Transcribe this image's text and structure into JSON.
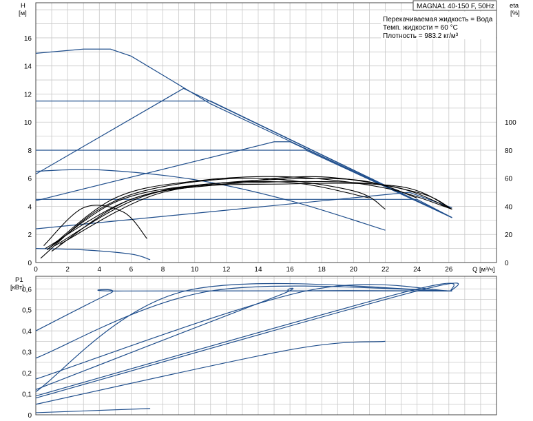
{
  "title_box": "MAGNA1 40-150 F, 50Hz",
  "info_lines": [
    "Перекачиваемая жидкость = Вода",
    "Темп. жидкости = 60 °C",
    "Плотность = 983.2 кг/м³"
  ],
  "colors": {
    "pump_curve": "#1f4e8c",
    "efficiency_curve": "#000000",
    "grid": "#c8c8c8"
  },
  "chart_data": [
    {
      "type": "line",
      "name": "head-chart",
      "ylabel_symbol": "H",
      "ylabel_unit": "[м]",
      "y2label_symbol": "eta",
      "y2label_unit": "[%]",
      "xlabel": "Q [м³/ч]",
      "xlim": [
        0,
        29
      ],
      "ylim": [
        0,
        18.5
      ],
      "y2lim": [
        0,
        185
      ],
      "x_ticks": [
        0,
        2,
        4,
        6,
        8,
        10,
        12,
        14,
        16,
        18,
        20,
        22,
        24,
        26
      ],
      "y_ticks": [
        0,
        2,
        4,
        6,
        8,
        10,
        12,
        14,
        16
      ],
      "y2_ticks": [
        0,
        20,
        40,
        60,
        80,
        100
      ],
      "grid": true,
      "pump_curves": [
        {
          "x": [
            0,
            3,
            4.7,
            6,
            11,
            26.2
          ],
          "y": [
            14.9,
            15.2,
            15.2,
            14.7,
            11.3,
            3.2
          ]
        },
        {
          "x": [
            0,
            9.3,
            26.2
          ],
          "y": [
            6.3,
            12.4,
            3.2
          ]
        },
        {
          "x": [
            0,
            11,
            26.2
          ],
          "y": [
            11.5,
            11.5,
            3.2
          ]
        },
        {
          "x": [
            0,
            15,
            16,
            26.2
          ],
          "y": [
            4.4,
            8.6,
            8.6,
            3.2
          ]
        },
        {
          "x": [
            0,
            17,
            26.2
          ],
          "y": [
            8.0,
            8.0,
            3.2
          ]
        },
        {
          "x": [
            0,
            23.5,
            26.2
          ],
          "y": [
            2.4,
            5.0,
            3.9
          ]
        },
        {
          "x": [
            0,
            24,
            26.2
          ],
          "y": [
            4.5,
            4.5,
            3.2
          ]
        },
        {
          "x": [
            0,
            4,
            10,
            16,
            22
          ],
          "y": [
            6.5,
            6.6,
            5.9,
            4.4,
            2.3
          ]
        },
        {
          "x": [
            0,
            3,
            6,
            7.2
          ],
          "y": [
            1.0,
            0.9,
            0.6,
            0.2
          ]
        }
      ],
      "efficiency_curves": [
        {
          "x": [
            0.3,
            4,
            8,
            14,
            20,
            22
          ],
          "y": [
            0.3,
            3.8,
            5.4,
            6.0,
            5.1,
            3.8
          ]
        },
        {
          "x": [
            0.5,
            3,
            5.5,
            7
          ],
          "y": [
            1.2,
            3.9,
            3.6,
            1.7
          ]
        },
        {
          "x": [
            0.8,
            5,
            10,
            16,
            22,
            26.2
          ],
          "y": [
            1.0,
            4.6,
            5.8,
            6.1,
            5.3,
            3.8
          ]
        },
        {
          "x": [
            1.0,
            6,
            12,
            18,
            24,
            26.2
          ],
          "y": [
            0.8,
            4.5,
            5.6,
            6.1,
            5.0,
            3.8
          ]
        },
        {
          "x": [
            1.2,
            7,
            14,
            22,
            26.2
          ],
          "y": [
            1.2,
            4.8,
            5.7,
            5.5,
            3.8
          ]
        },
        {
          "x": [
            1.5,
            8,
            16,
            23,
            26.2
          ],
          "y": [
            1.3,
            5.0,
            5.6,
            5.4,
            3.8
          ]
        },
        {
          "x": [
            0.6,
            6,
            12,
            20,
            24
          ],
          "y": [
            1.0,
            4.5,
            5.7,
            5.9,
            4.6
          ]
        },
        {
          "x": [
            0.7,
            5,
            10,
            16,
            21
          ],
          "y": [
            0.9,
            4.3,
            5.5,
            5.7,
            4.6
          ]
        }
      ]
    },
    {
      "type": "line",
      "name": "power-chart",
      "ylabel_symbol": "P1",
      "ylabel_unit": "[кВт]",
      "xlim": [
        0,
        29
      ],
      "ylim": [
        0,
        0.66
      ],
      "y_ticks": [
        0,
        0.1,
        0.2,
        0.3,
        0.4,
        0.5,
        0.6
      ],
      "y_tick_labels": [
        "0",
        "0,1",
        "0,2",
        "0,3",
        "0,4",
        "0,5",
        "0,6"
      ],
      "grid": true,
      "curves": [
        {
          "x": [
            0,
            4.7,
            5.5,
            26.2
          ],
          "y": [
            0.4,
            0.58,
            0.59,
            0.59
          ]
        },
        {
          "x": [
            0,
            11,
            26.2
          ],
          "y": [
            0.27,
            0.59,
            0.59
          ]
        },
        {
          "x": [
            0,
            9.4,
            26.2
          ],
          "y": [
            0.11,
            0.59,
            0.59
          ]
        },
        {
          "x": [
            0,
            15,
            16.5,
            26.2
          ],
          "y": [
            0.12,
            0.56,
            0.59,
            0.59
          ]
        },
        {
          "x": [
            0,
            17,
            26.2
          ],
          "y": [
            0.17,
            0.59,
            0.59
          ]
        },
        {
          "x": [
            0,
            24,
            26.2
          ],
          "y": [
            0.08,
            0.59,
            0.59
          ]
        },
        {
          "x": [
            0,
            23.5,
            26.2
          ],
          "y": [
            0.09,
            0.59,
            0.59
          ]
        },
        {
          "x": [
            0,
            16,
            22
          ],
          "y": [
            0.05,
            0.31,
            0.35
          ]
        },
        {
          "x": [
            0,
            7.2
          ],
          "y": [
            0.01,
            0.03
          ]
        }
      ]
    }
  ]
}
